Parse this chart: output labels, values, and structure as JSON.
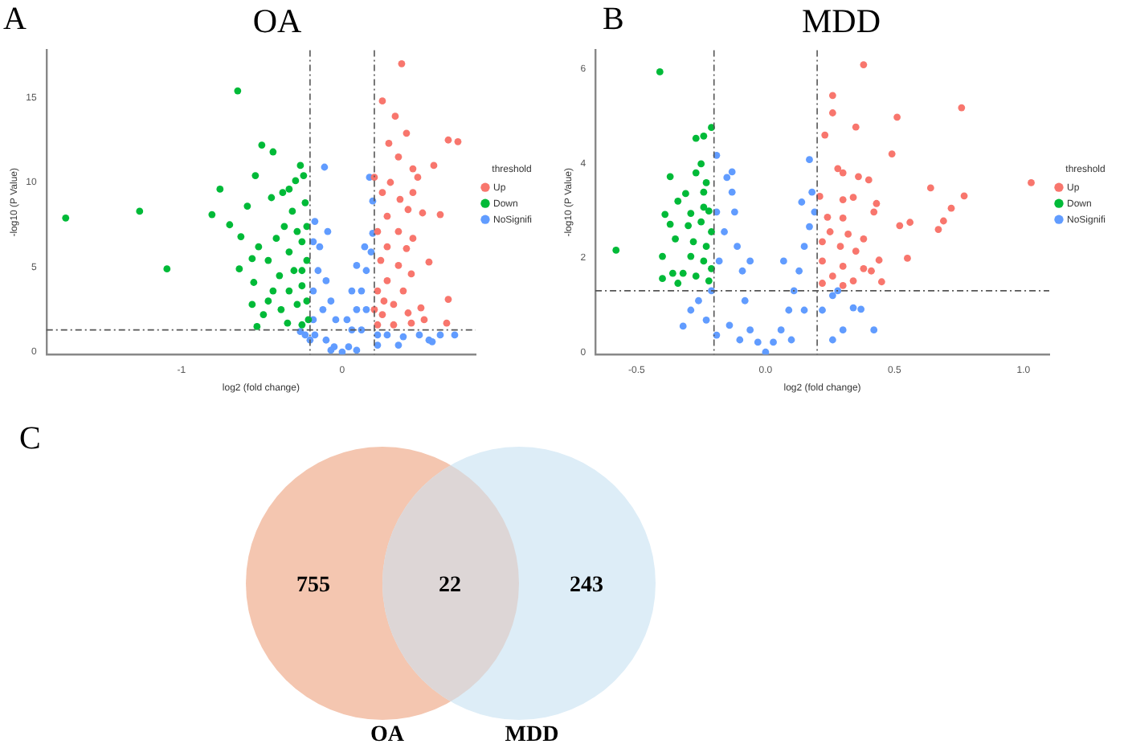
{
  "chart_data": [
    {
      "type": "scatter",
      "title": "OA",
      "xlabel": "log2 (fold change)",
      "ylabel": "-log10 (P Value)",
      "legend_title": "threshold",
      "legend": "right",
      "grid": false,
      "marker": "circle",
      "xlim": [
        -1.84,
        0.83
      ],
      "xticks": [
        -1,
        0
      ],
      "ylim": [
        -0.15,
        17.8
      ],
      "yticks": [
        0,
        5,
        10,
        15
      ],
      "ref_lines": [
        {
          "axis": "x",
          "value": -0.2,
          "line_style": "dashed"
        },
        {
          "axis": "x",
          "value": 0.2,
          "line_style": "dashed"
        },
        {
          "axis": "y",
          "value": 1.3,
          "line_style": "dashed"
        }
      ],
      "annotations": [
        "A"
      ],
      "series": [
        {
          "name": "Up",
          "color": "#f8766d",
          "x": [
            0.37,
            0.25,
            0.33,
            0.4,
            0.29,
            0.66,
            0.72,
            0.35,
            0.57,
            0.44,
            0.2,
            0.47,
            0.3,
            0.44,
            0.25,
            0.36,
            0.5,
            0.61,
            0.41,
            0.28,
            0.22,
            0.35,
            0.44,
            0.28,
            0.4,
            0.54,
            0.24,
            0.35,
            0.43,
            0.28,
            0.38,
            0.22,
            0.66,
            0.49,
            0.32,
            0.25,
            0.41,
            0.43,
            0.65,
            0.22,
            0.32,
            0.51,
            0.2,
            0.26
          ],
          "values": [
            17.0,
            14.8,
            13.9,
            12.9,
            12.3,
            12.5,
            12.4,
            11.5,
            11.0,
            10.8,
            10.3,
            10.3,
            10.0,
            9.4,
            9.4,
            9.0,
            8.2,
            8.1,
            8.4,
            8.0,
            7.1,
            7.1,
            6.7,
            6.2,
            6.1,
            5.3,
            5.4,
            5.1,
            4.6,
            4.2,
            3.6,
            3.6,
            3.1,
            2.6,
            2.8,
            2.2,
            2.3,
            1.7,
            1.7,
            1.6,
            1.6,
            1.9,
            2.5,
            3.0
          ]
        },
        {
          "name": "Down",
          "color": "#00ba38",
          "x": [
            -1.72,
            -1.26,
            -1.09,
            -0.65,
            -0.5,
            -0.43,
            -0.76,
            -0.81,
            -0.54,
            -0.26,
            -0.59,
            -0.7,
            -0.63,
            -0.64,
            -0.56,
            -0.55,
            -0.56,
            -0.53,
            -0.44,
            -0.37,
            -0.33,
            -0.29,
            -0.24,
            -0.31,
            -0.23,
            -0.36,
            -0.28,
            -0.41,
            -0.25,
            -0.46,
            -0.33,
            -0.22,
            -0.39,
            -0.3,
            -0.22,
            -0.43,
            -0.33,
            -0.25,
            -0.38,
            -0.28,
            -0.22,
            -0.34,
            -0.25,
            -0.49,
            -0.21,
            -0.46,
            -0.52,
            -0.25
          ],
          "values": [
            7.9,
            8.3,
            4.9,
            15.4,
            12.2,
            11.8,
            9.6,
            8.1,
            10.4,
            11.0,
            8.6,
            7.5,
            6.8,
            4.9,
            5.5,
            4.1,
            2.8,
            1.5,
            9.1,
            9.4,
            9.6,
            10.1,
            10.4,
            8.3,
            8.8,
            7.4,
            7.1,
            6.7,
            6.5,
            5.4,
            5.9,
            7.4,
            4.5,
            4.8,
            5.4,
            3.6,
            3.6,
            3.9,
            2.5,
            2.8,
            3.0,
            1.7,
            1.6,
            2.2,
            1.9,
            3.0,
            6.2,
            4.8
          ]
        },
        {
          "name": "NoSignifi",
          "color": "#619cff",
          "x": [
            -0.18,
            -0.14,
            -0.15,
            -0.1,
            -0.18,
            -0.07,
            -0.04,
            -0.18,
            -0.12,
            -0.17,
            -0.23,
            -0.26,
            -0.1,
            -0.05,
            0,
            0.04,
            0.06,
            0.09,
            0.12,
            0.15,
            0.18,
            0.19,
            0.14,
            0.09,
            0.06,
            0.03,
            0.15,
            0.12,
            0.22,
            0.28,
            0.38,
            0.48,
            0.54,
            0.61,
            0.7,
            0.56,
            0.35,
            0.22,
            0.09,
            -0.07,
            -0.2,
            -0.11,
            0.17,
            0.19,
            -0.17,
            -0.09
          ],
          "values": [
            6.5,
            6.2,
            4.8,
            4.2,
            3.6,
            3.0,
            1.9,
            1.9,
            2.5,
            1.0,
            1.0,
            1.2,
            0.7,
            0.3,
            0,
            0.3,
            1.3,
            2.5,
            3.6,
            4.8,
            5.9,
            7.0,
            6.2,
            5.1,
            3.6,
            1.9,
            2.5,
            1.3,
            1.0,
            1.0,
            0.9,
            1.0,
            0.7,
            1.0,
            1.0,
            0.6,
            0.4,
            0.4,
            0.1,
            0.1,
            0.7,
            10.9,
            10.3,
            8.9,
            7.7,
            7.1
          ]
        }
      ]
    },
    {
      "type": "scatter",
      "title": "MDD",
      "xlabel": "log2 (fold change)",
      "ylabel": "-log10 (P Value)",
      "legend_title": "threshold",
      "legend": "right",
      "grid": false,
      "marker": "circle",
      "xlim": [
        -0.66,
        1.1
      ],
      "xticks": [
        -0.5,
        {
          "value": 0,
          "label": "0.0"
        },
        0.5,
        {
          "value": 1,
          "label": "1.0"
        }
      ],
      "ylim": [
        -0.05,
        6.4
      ],
      "yticks": [
        0,
        2,
        4,
        6
      ],
      "ref_lines": [
        {
          "axis": "x",
          "value": -0.2,
          "line_style": "dashed"
        },
        {
          "axis": "x",
          "value": 0.2,
          "line_style": "dashed"
        },
        {
          "axis": "y",
          "value": 1.3,
          "line_style": "dashed"
        }
      ],
      "annotations": [
        "B"
      ],
      "series": [
        {
          "name": "Up",
          "color": "#f8766d",
          "x": [
            0.38,
            0.76,
            0.26,
            0.26,
            0.51,
            0.35,
            0.23,
            0.49,
            0.28,
            0.3,
            0.36,
            0.4,
            1.03,
            0.64,
            0.77,
            0.21,
            0.3,
            0.34,
            0.43,
            0.72,
            0.42,
            0.69,
            0.56,
            0.52,
            0.67,
            0.24,
            0.3,
            0.25,
            0.32,
            0.38,
            0.22,
            0.29,
            0.35,
            0.55,
            0.44,
            0.22,
            0.3,
            0.38,
            0.26,
            0.34,
            0.45,
            0.22,
            0.3,
            0.41
          ],
          "values": [
            6.09,
            5.18,
            5.44,
            5.07,
            4.98,
            4.77,
            4.6,
            4.2,
            3.89,
            3.8,
            3.72,
            3.65,
            3.59,
            3.48,
            3.31,
            3.3,
            3.23,
            3.28,
            3.15,
            3.05,
            2.97,
            2.78,
            2.75,
            2.68,
            2.6,
            2.86,
            2.84,
            2.55,
            2.5,
            2.4,
            2.34,
            2.24,
            2.14,
            1.99,
            1.95,
            1.93,
            1.82,
            1.77,
            1.61,
            1.51,
            1.49,
            1.46,
            1.41,
            1.72
          ]
        },
        {
          "name": "Down",
          "color": "#00ba38",
          "x": [
            -0.41,
            -0.58,
            -0.21,
            -0.24,
            -0.27,
            -0.25,
            -0.27,
            -0.37,
            -0.23,
            -0.31,
            -0.34,
            -0.24,
            -0.22,
            -0.24,
            -0.29,
            -0.39,
            -0.37,
            -0.25,
            -0.21,
            -0.3,
            -0.35,
            -0.28,
            -0.23,
            -0.4,
            -0.29,
            -0.24,
            -0.36,
            -0.32,
            -0.4,
            -0.27,
            -0.22,
            -0.21,
            -0.34
          ],
          "values": [
            5.94,
            2.16,
            4.76,
            4.58,
            4.53,
            3.99,
            3.8,
            3.72,
            3.59,
            3.36,
            3.2,
            3.39,
            2.99,
            3.07,
            2.94,
            2.92,
            2.71,
            2.76,
            2.55,
            2.68,
            2.4,
            2.34,
            2.24,
            2.03,
            2.03,
            1.93,
            1.67,
            1.67,
            1.56,
            1.61,
            1.51,
            1.77,
            1.46
          ]
        },
        {
          "name": "NoSignifi",
          "color": "#619cff",
          "x": [
            -0.19,
            -0.12,
            -0.16,
            -0.11,
            -0.18,
            -0.09,
            -0.21,
            -0.08,
            -0.26,
            -0.29,
            -0.32,
            -0.23,
            -0.14,
            -0.06,
            -0.03,
            0,
            0.03,
            0.06,
            0.09,
            0.11,
            0.13,
            0.15,
            0.17,
            0.14,
            0.18,
            0.19,
            0.15,
            0.22,
            0.26,
            0.28,
            0.34,
            0.37,
            0.3,
            0.26,
            0.42,
            0.1,
            -0.1,
            -0.19,
            -0.13,
            -0.15,
            0.17,
            -0.19,
            -0.13,
            -0.06,
            0.07
          ],
          "values": [
            2.97,
            2.97,
            2.55,
            2.24,
            1.93,
            1.72,
            1.3,
            1.09,
            1.09,
            0.89,
            0.55,
            0.68,
            0.57,
            0.47,
            0.21,
            0,
            0.21,
            0.47,
            0.89,
            1.3,
            1.72,
            2.24,
            2.66,
            3.18,
            3.39,
            2.97,
            0.89,
            0.89,
            1.2,
            1.3,
            0.94,
            0.91,
            0.47,
            0.26,
            0.47,
            0.26,
            0.26,
            0.36,
            3.82,
            3.7,
            4.08,
            4.17,
            3.39,
            1.93,
            1.93
          ]
        }
      ]
    },
    {
      "type": "other",
      "categories": [
        null,
        null,
        null
      ],
      "values": [
        755,
        22,
        243
      ],
      "colors": [
        "#f4c6b0",
        "#ddd6d6",
        "#ddedf7"
      ],
      "data_labels": true,
      "annotations": [
        "C",
        "OA",
        "MDD"
      ]
    }
  ]
}
